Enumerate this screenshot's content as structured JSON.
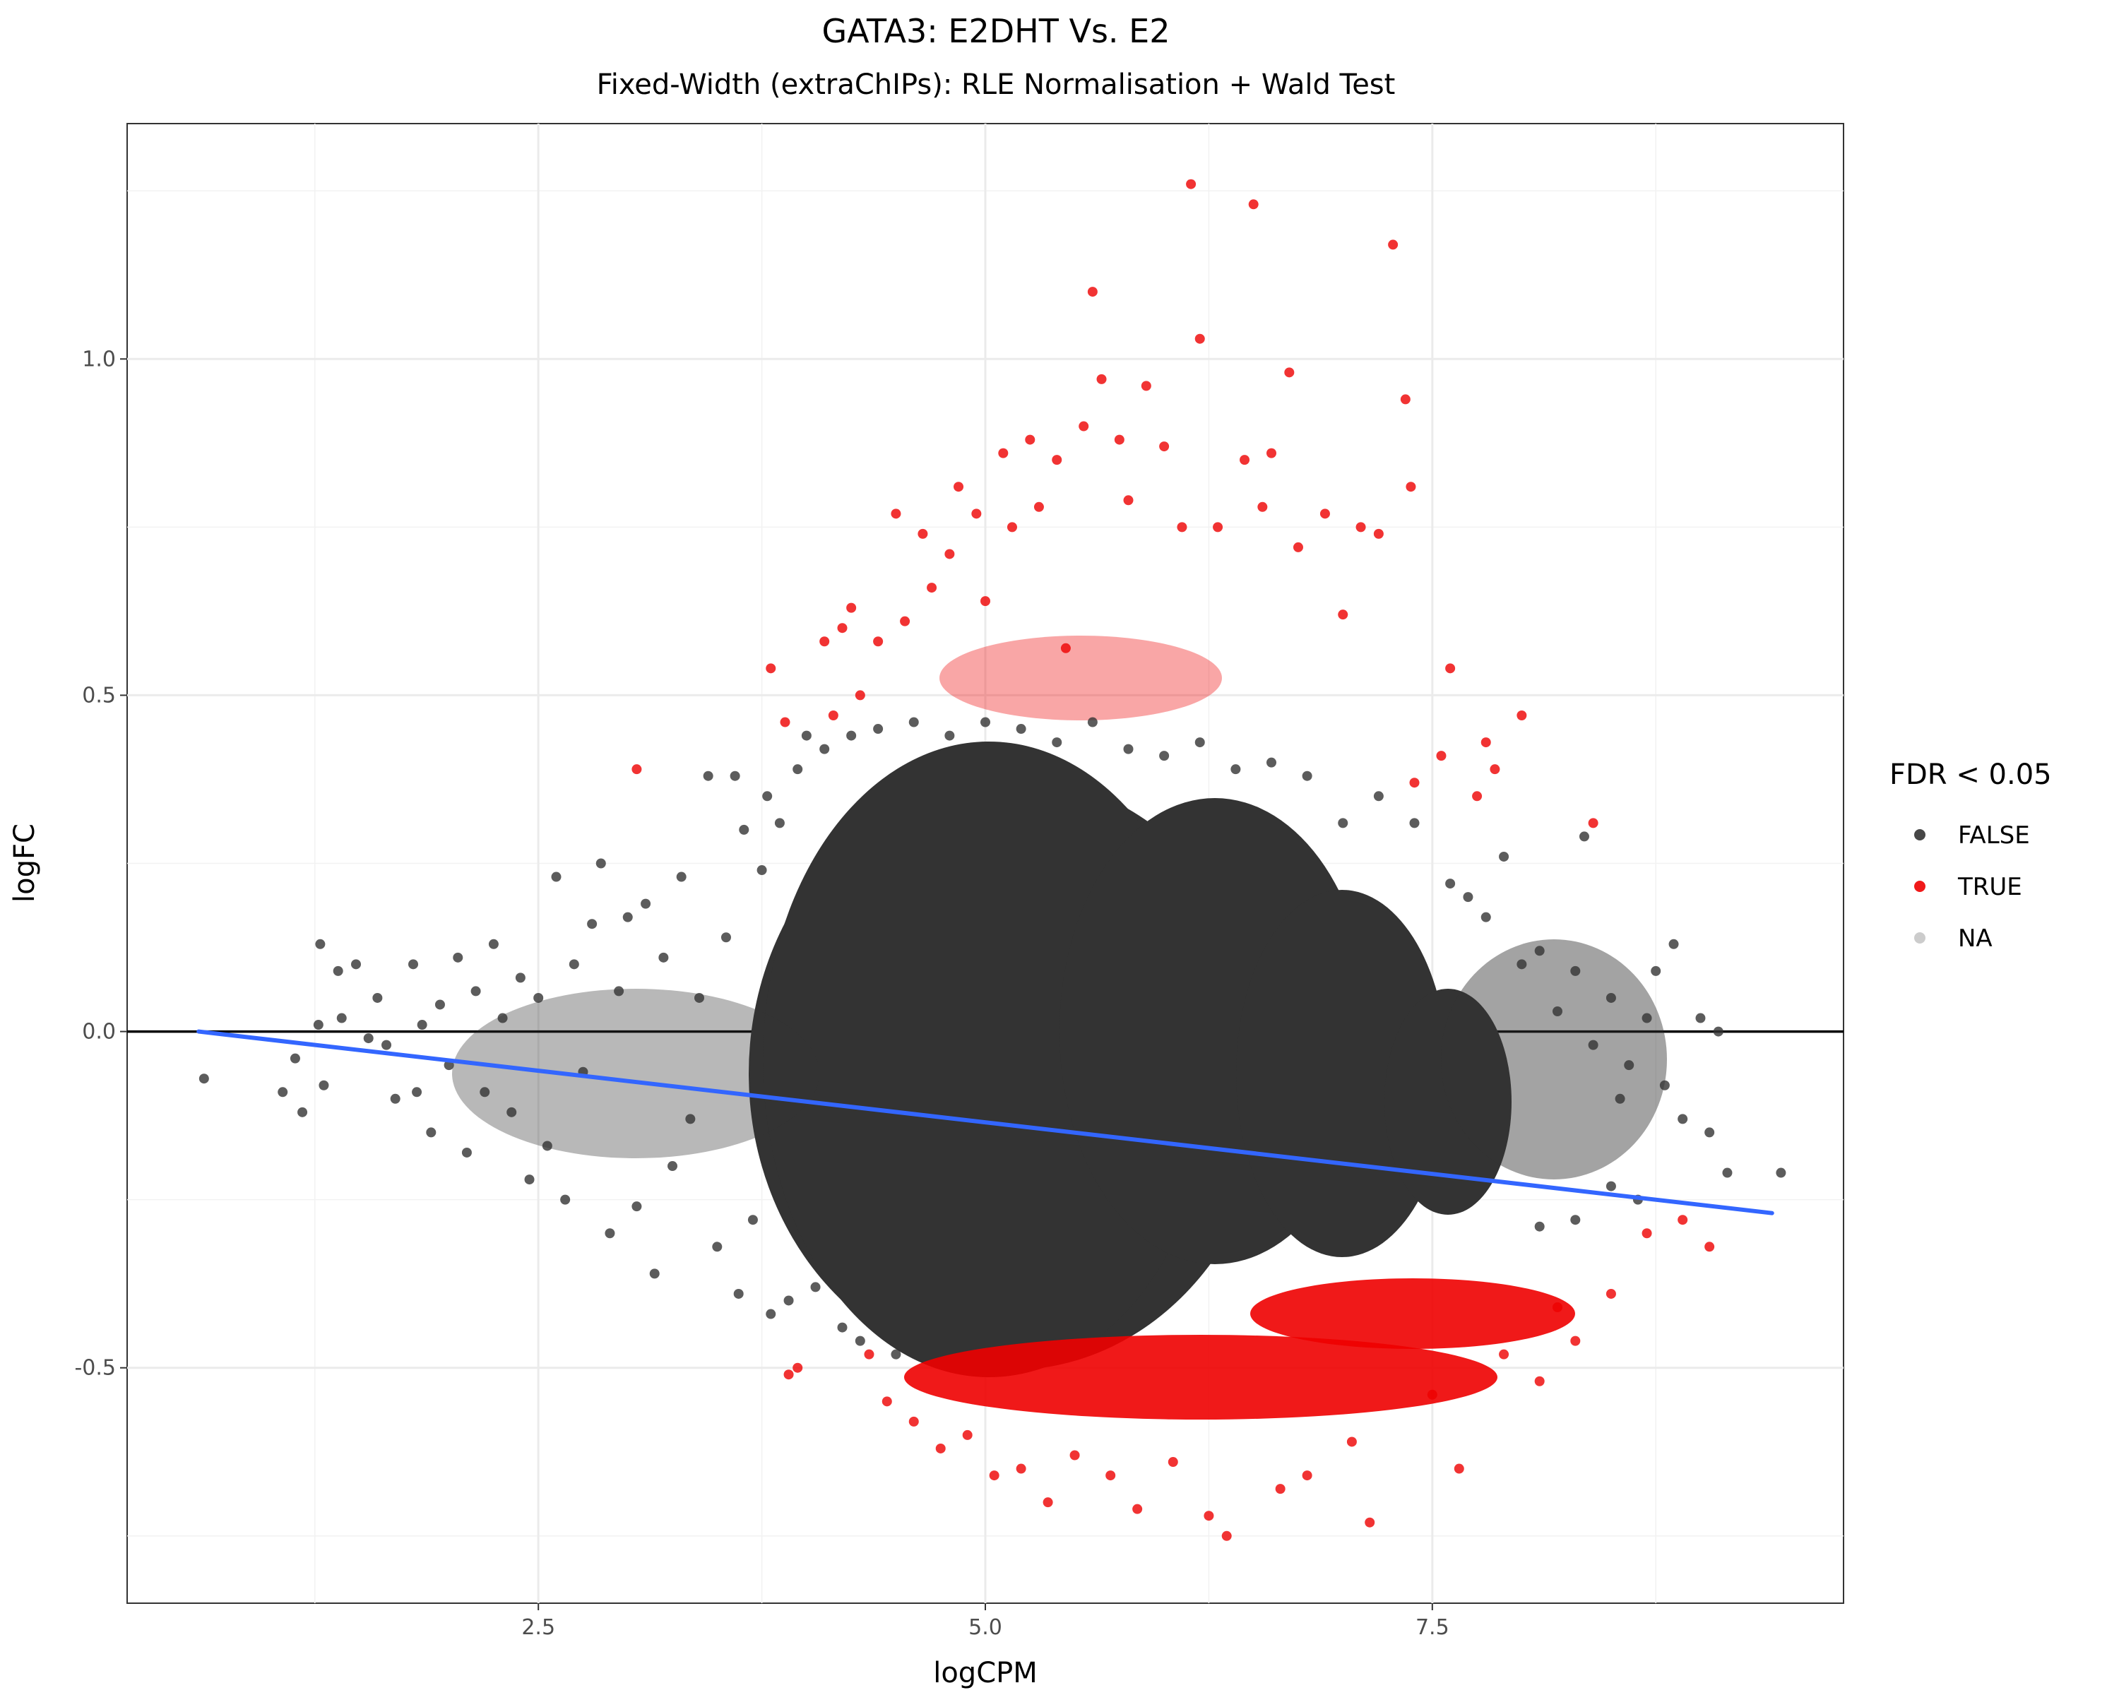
{
  "chart_data": {
    "type": "scatter",
    "title": "GATA3: E2DHT Vs. E2",
    "subtitle": "Fixed-Width (extraChIPs): RLE Normalisation + Wald Test",
    "xlabel": "logCPM",
    "ylabel": "logFC",
    "xlim": [
      0.2,
      9.8
    ],
    "ylim": [
      -0.85,
      1.35
    ],
    "x_ticks": [
      2.5,
      5.0,
      7.5
    ],
    "x_tick_labels": [
      "2.5",
      "5.0",
      "7.5"
    ],
    "y_ticks": [
      -0.5,
      0.0,
      0.5,
      1.0
    ],
    "y_tick_labels": [
      "-0.5",
      "0.0",
      "0.5",
      "1.0"
    ],
    "grid": true,
    "hline": {
      "y": 0.0,
      "color": "#000000"
    },
    "trend_line": {
      "color": "#3366ff",
      "x": [
        0.6,
        9.4
      ],
      "y": [
        0.0,
        -0.27
      ]
    },
    "legend": {
      "title": "FDR < 0.05",
      "position": "right",
      "entries": [
        {
          "label": "FALSE",
          "color": "#333333"
        },
        {
          "label": "TRUE",
          "color": "#ee0000"
        },
        {
          "label": "NA",
          "color": "#999999"
        }
      ]
    },
    "series": [
      {
        "name": "FALSE",
        "color": "#333333",
        "points": [
          [
            0.63,
            -0.07
          ],
          [
            1.07,
            -0.09
          ],
          [
            1.14,
            -0.04
          ],
          [
            1.18,
            -0.12
          ],
          [
            1.27,
            0.01
          ],
          [
            1.28,
            0.13
          ],
          [
            1.3,
            -0.08
          ],
          [
            1.38,
            0.09
          ],
          [
            1.4,
            0.02
          ],
          [
            1.48,
            0.1
          ],
          [
            1.55,
            -0.01
          ],
          [
            1.6,
            0.05
          ],
          [
            1.65,
            -0.02
          ],
          [
            1.7,
            -0.1
          ],
          [
            1.8,
            0.1
          ],
          [
            1.82,
            -0.09
          ],
          [
            1.85,
            0.01
          ],
          [
            1.9,
            -0.15
          ],
          [
            1.95,
            0.04
          ],
          [
            2.0,
            -0.05
          ],
          [
            2.05,
            0.11
          ],
          [
            2.1,
            -0.18
          ],
          [
            2.15,
            0.06
          ],
          [
            2.2,
            -0.09
          ],
          [
            2.25,
            0.13
          ],
          [
            2.3,
            0.02
          ],
          [
            2.35,
            -0.12
          ],
          [
            2.4,
            0.08
          ],
          [
            2.45,
            -0.22
          ],
          [
            2.5,
            0.05
          ],
          [
            2.55,
            -0.17
          ],
          [
            2.6,
            0.23
          ],
          [
            2.65,
            -0.25
          ],
          [
            2.7,
            0.1
          ],
          [
            2.75,
            -0.06
          ],
          [
            2.8,
            0.16
          ],
          [
            2.85,
            0.25
          ],
          [
            2.9,
            -0.3
          ],
          [
            2.95,
            0.06
          ],
          [
            3.0,
            0.17
          ],
          [
            3.05,
            -0.26
          ],
          [
            3.1,
            0.19
          ],
          [
            3.15,
            -0.36
          ],
          [
            3.2,
            0.11
          ],
          [
            3.25,
            -0.2
          ],
          [
            3.3,
            0.23
          ],
          [
            3.35,
            -0.13
          ],
          [
            3.4,
            0.05
          ],
          [
            3.45,
            0.38
          ],
          [
            3.5,
            -0.32
          ],
          [
            3.55,
            0.14
          ],
          [
            3.6,
            0.38
          ],
          [
            3.62,
            -0.39
          ],
          [
            3.65,
            0.3
          ],
          [
            3.7,
            -0.28
          ],
          [
            3.75,
            0.24
          ],
          [
            3.78,
            0.35
          ],
          [
            3.8,
            -0.42
          ],
          [
            3.85,
            0.31
          ],
          [
            3.9,
            -0.4
          ],
          [
            3.95,
            0.39
          ],
          [
            4.0,
            0.44
          ],
          [
            4.05,
            -0.38
          ],
          [
            4.1,
            0.42
          ],
          [
            4.2,
            -0.44
          ],
          [
            4.25,
            0.44
          ],
          [
            4.3,
            -0.46
          ],
          [
            4.4,
            0.45
          ],
          [
            4.5,
            -0.48
          ],
          [
            4.6,
            0.46
          ],
          [
            4.8,
            0.44
          ],
          [
            5.0,
            0.46
          ],
          [
            5.2,
            0.45
          ],
          [
            5.4,
            0.43
          ],
          [
            5.6,
            0.46
          ],
          [
            5.8,
            0.42
          ],
          [
            6.0,
            0.41
          ],
          [
            6.2,
            0.43
          ],
          [
            6.4,
            0.39
          ],
          [
            6.6,
            0.4
          ],
          [
            6.8,
            0.38
          ],
          [
            7.0,
            0.31
          ],
          [
            7.2,
            0.35
          ],
          [
            7.4,
            0.31
          ],
          [
            7.6,
            0.22
          ],
          [
            7.7,
            0.2
          ],
          [
            7.8,
            0.17
          ],
          [
            7.9,
            0.26
          ],
          [
            8.0,
            0.1
          ],
          [
            8.1,
            0.12
          ],
          [
            8.2,
            0.03
          ],
          [
            8.3,
            0.09
          ],
          [
            8.35,
            0.29
          ],
          [
            8.4,
            -0.02
          ],
          [
            8.5,
            0.05
          ],
          [
            8.55,
            -0.1
          ],
          [
            8.6,
            -0.05
          ],
          [
            8.7,
            0.02
          ],
          [
            8.75,
            0.09
          ],
          [
            8.8,
            -0.08
          ],
          [
            8.85,
            0.13
          ],
          [
            8.9,
            -0.13
          ],
          [
            9.0,
            0.02
          ],
          [
            9.05,
            -0.15
          ],
          [
            9.1,
            0.0
          ],
          [
            9.15,
            -0.21
          ],
          [
            9.45,
            -0.21
          ],
          [
            8.65,
            -0.25
          ],
          [
            8.5,
            -0.23
          ],
          [
            8.3,
            -0.28
          ],
          [
            8.1,
            -0.29
          ]
        ]
      },
      {
        "name": "TRUE",
        "color": "#ee0000",
        "points": [
          [
            3.05,
            0.39
          ],
          [
            3.8,
            0.54
          ],
          [
            3.88,
            0.46
          ],
          [
            3.9,
            -0.51
          ],
          [
            3.95,
            -0.5
          ],
          [
            4.1,
            0.58
          ],
          [
            4.15,
            0.47
          ],
          [
            4.2,
            0.6
          ],
          [
            4.25,
            0.63
          ],
          [
            4.3,
            0.5
          ],
          [
            4.35,
            -0.48
          ],
          [
            4.4,
            0.58
          ],
          [
            4.45,
            -0.55
          ],
          [
            4.5,
            0.77
          ],
          [
            4.55,
            0.61
          ],
          [
            4.6,
            -0.58
          ],
          [
            4.65,
            0.74
          ],
          [
            4.7,
            0.66
          ],
          [
            4.75,
            -0.62
          ],
          [
            4.8,
            0.71
          ],
          [
            4.85,
            0.81
          ],
          [
            4.9,
            -0.6
          ],
          [
            4.95,
            0.77
          ],
          [
            5.0,
            0.64
          ],
          [
            5.05,
            -0.66
          ],
          [
            5.1,
            0.86
          ],
          [
            5.15,
            0.75
          ],
          [
            5.2,
            -0.65
          ],
          [
            5.25,
            0.88
          ],
          [
            5.3,
            0.78
          ],
          [
            5.35,
            -0.7
          ],
          [
            5.4,
            0.85
          ],
          [
            5.45,
            0.57
          ],
          [
            5.5,
            -0.63
          ],
          [
            5.55,
            0.9
          ],
          [
            5.6,
            1.1
          ],
          [
            5.65,
            0.97
          ],
          [
            5.7,
            -0.66
          ],
          [
            5.75,
            0.88
          ],
          [
            5.8,
            0.79
          ],
          [
            5.85,
            -0.71
          ],
          [
            5.9,
            0.96
          ],
          [
            6.0,
            0.87
          ],
          [
            6.05,
            -0.64
          ],
          [
            6.1,
            0.75
          ],
          [
            6.15,
            1.26
          ],
          [
            6.2,
            1.03
          ],
          [
            6.25,
            -0.72
          ],
          [
            6.3,
            0.75
          ],
          [
            6.35,
            -0.75
          ],
          [
            6.45,
            0.85
          ],
          [
            6.5,
            1.23
          ],
          [
            6.55,
            0.78
          ],
          [
            6.6,
            0.86
          ],
          [
            6.65,
            -0.68
          ],
          [
            6.7,
            0.98
          ],
          [
            6.75,
            0.72
          ],
          [
            6.8,
            -0.66
          ],
          [
            6.9,
            0.77
          ],
          [
            7.0,
            0.62
          ],
          [
            7.05,
            -0.61
          ],
          [
            7.1,
            0.75
          ],
          [
            7.15,
            -0.73
          ],
          [
            7.2,
            0.74
          ],
          [
            7.28,
            1.17
          ],
          [
            7.35,
            0.94
          ],
          [
            7.38,
            0.81
          ],
          [
            7.4,
            0.37
          ],
          [
            7.5,
            -0.54
          ],
          [
            7.55,
            0.41
          ],
          [
            7.6,
            0.54
          ],
          [
            7.65,
            -0.65
          ],
          [
            7.75,
            0.35
          ],
          [
            7.8,
            0.43
          ],
          [
            7.85,
            0.39
          ],
          [
            7.9,
            -0.48
          ],
          [
            8.0,
            0.47
          ],
          [
            8.1,
            -0.52
          ],
          [
            8.2,
            -0.41
          ],
          [
            8.3,
            -0.46
          ],
          [
            8.4,
            0.31
          ],
          [
            8.5,
            -0.39
          ],
          [
            8.7,
            -0.3
          ],
          [
            8.9,
            -0.28
          ],
          [
            9.05,
            -0.32
          ]
        ]
      }
    ]
  }
}
